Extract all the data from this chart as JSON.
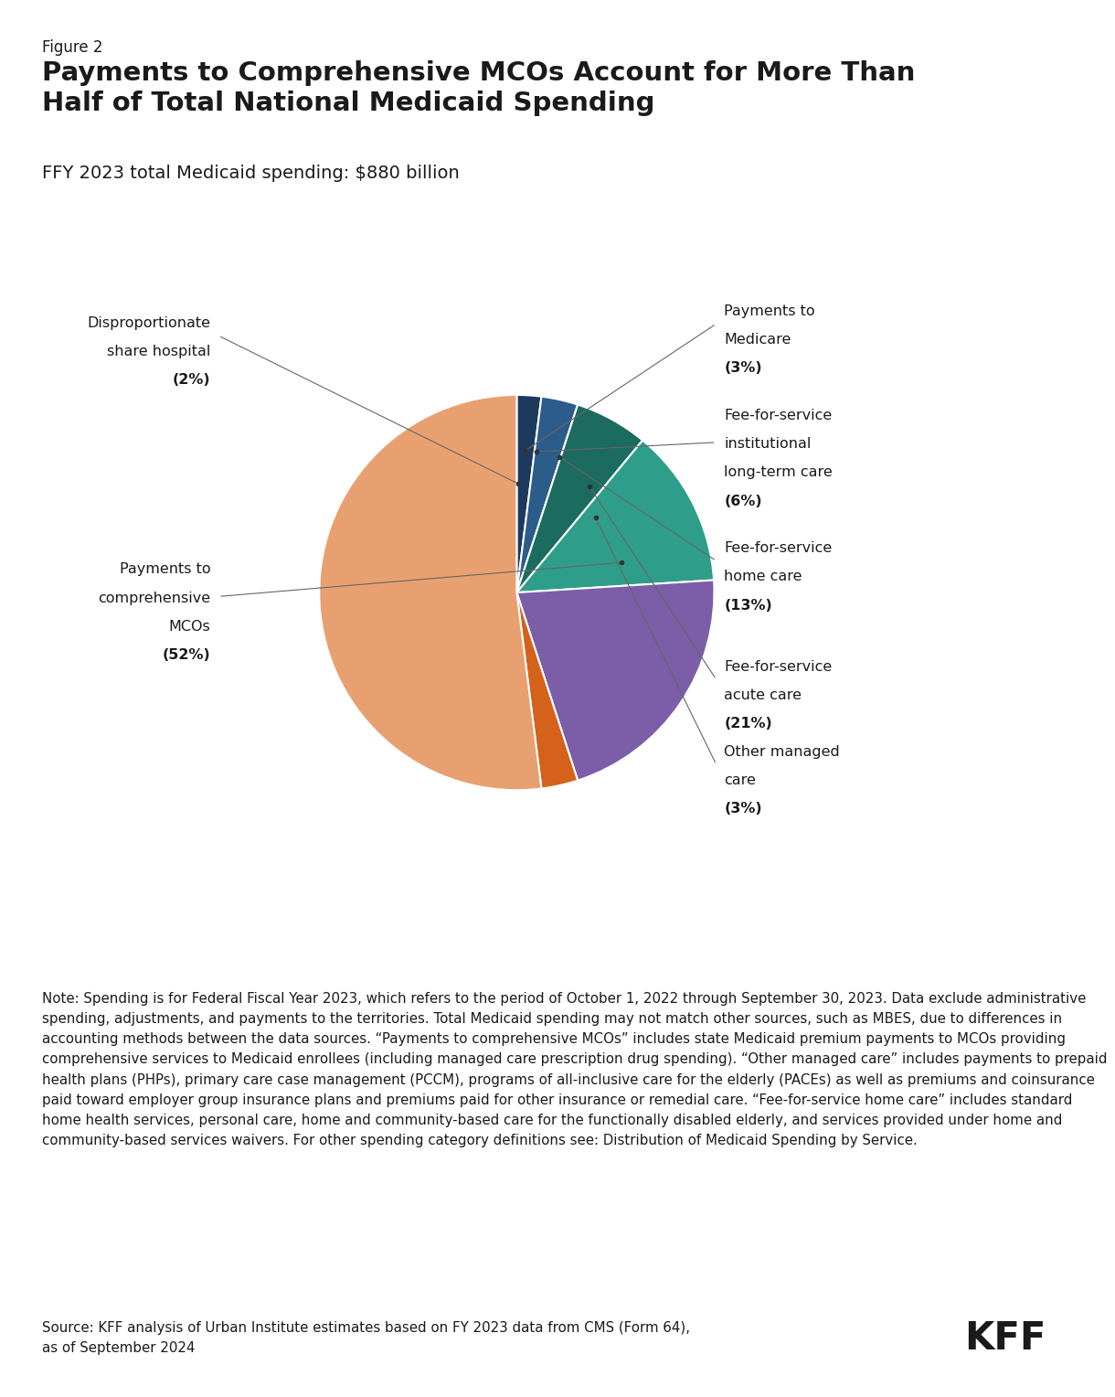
{
  "figure_label": "Figure 2",
  "title": "Payments to Comprehensive MCOs Account for More Than\nHalf of Total National Medicaid Spending",
  "subtitle": "FFY 2023 total Medicaid spending: $880 billion",
  "wedge_sizes": [
    2,
    3,
    6,
    13,
    21,
    3,
    52
  ],
  "wedge_colors": [
    "#1C3A5E",
    "#2B5C8A",
    "#1B6B5E",
    "#2E9E8A",
    "#7B5EA7",
    "#D4621A",
    "#E8A070"
  ],
  "wedge_labels": [
    "Disproportionate\nshare hospital",
    "Payments to\nMedicare",
    "Fee-for-service\ninstitutional\nlong-term care",
    "Fee-for-service\nhome care",
    "Fee-for-service\nacute care",
    "Other managed\ncare",
    "Payments to\ncomprehensive\nMCOs"
  ],
  "wedge_pcts": [
    2,
    3,
    6,
    13,
    21,
    3,
    52
  ],
  "note_text": "Note: Spending is for Federal Fiscal Year 2023, which refers to the period of October 1, 2022 through September 30, 2023. Data exclude administrative spending, adjustments, and payments to the territories. Total Medicaid spending may not match other sources, such as MBES, due to differences in accounting methods between the data sources. “Payments to comprehensive MCOs” includes state Medicaid premium payments to MCOs providing comprehensive services to Medicaid enrollees (including managed care prescription drug spending). “Other managed care” includes payments to prepaid health plans (PHPs), primary care case management (PCCM), programs of all-inclusive care for the elderly (PACEs) as well as premiums and coinsurance paid toward employer group insurance plans and premiums paid for other insurance or remedial care. “Fee-for-service home care” includes standard home health services, personal care, home and community-based care for the functionally disabled elderly, and services provided under home and community-based services waivers. For other spending category definitions see: Distribution of Medicaid Spending by Service.",
  "source_text": "Source: KFF analysis of Urban Institute estimates based on FY 2023 data from CMS (Form 64),\nas of September 2024",
  "background_color": "#FFFFFF",
  "text_color": "#1a1a1a"
}
